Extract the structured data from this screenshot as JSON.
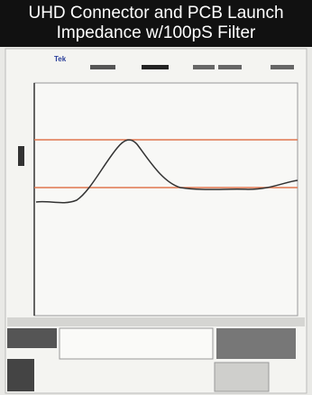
{
  "header": {
    "title_line_1": "UHD Connector and PCB Launch",
    "title_line_2": "Impedance w/100pS Filter"
  },
  "screen": {
    "brand": "Tek"
  }
}
